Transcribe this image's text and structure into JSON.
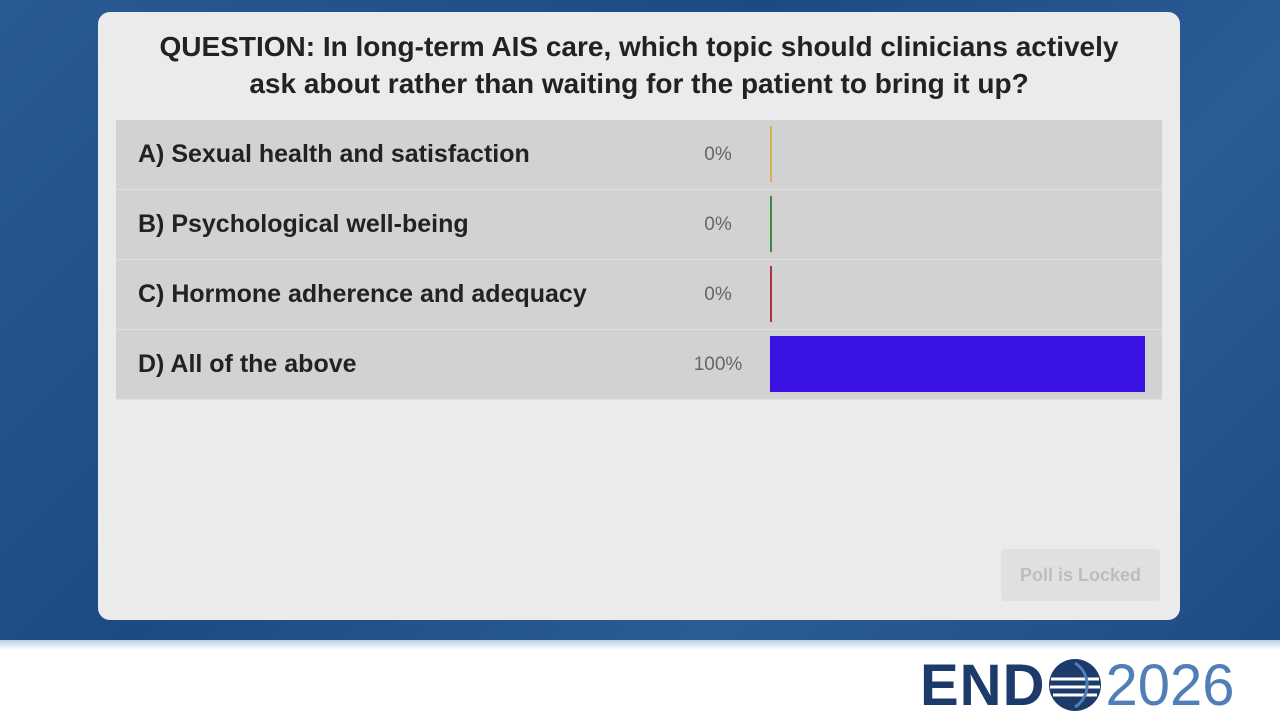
{
  "chart_data": {
    "type": "bar",
    "title": "QUESTION: In long-term AIS care, which topic should clinicians actively ask about rather than waiting for the patient to bring it up?",
    "categories": [
      "A) Sexual health and satisfaction",
      "B) Psychological well-being",
      "C) Hormone adherence and adequacy",
      "D) All of the above"
    ],
    "values": [
      0,
      0,
      0,
      100
    ],
    "value_labels": [
      "0%",
      "0%",
      "0%",
      "100%"
    ],
    "colors": [
      "#d4b24a",
      "#3a8a3a",
      "#b03040",
      "#3a12e2"
    ],
    "xlim": [
      0,
      100
    ]
  },
  "button": "Poll is Locked",
  "logo": {
    "brand": "END",
    "year": "2026"
  }
}
